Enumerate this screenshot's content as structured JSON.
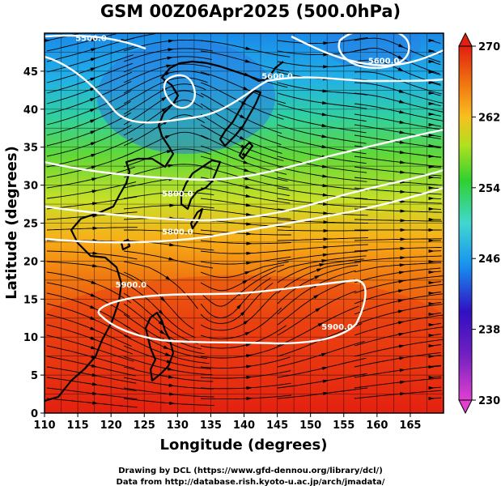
{
  "title": "GSM 00Z06Apr2025 (500.0hPa)",
  "x_axis": {
    "label": "Longitude (degrees)",
    "range": [
      110,
      170
    ],
    "ticks": [
      110,
      115,
      120,
      125,
      130,
      135,
      140,
      145,
      150,
      155,
      160,
      165
    ]
  },
  "y_axis": {
    "label": "Latitude  (degrees)",
    "range": [
      0,
      50
    ],
    "ticks": [
      0,
      5,
      10,
      15,
      20,
      25,
      30,
      35,
      40,
      45
    ]
  },
  "colorbar": {
    "min": 230,
    "max": 270,
    "ticks": [
      230,
      238,
      246,
      254,
      262,
      270
    ],
    "colors": [
      "#e040d0",
      "#3010c0",
      "#1890f0",
      "#40d8d0",
      "#30d030",
      "#b0e020",
      "#f8c020",
      "#f07010",
      "#e02010"
    ]
  },
  "contour_labels": [
    {
      "text": "5500.0",
      "lon": 117,
      "lat": 49
    },
    {
      "text": "5600.0",
      "lon": 145,
      "lat": 44
    },
    {
      "text": "5600.0",
      "lon": 161,
      "lat": 46
    },
    {
      "text": "5800.0",
      "lon": 130,
      "lat": 28.5
    },
    {
      "text": "5800.0",
      "lon": 130,
      "lat": 23.5
    },
    {
      "text": "5900.0",
      "lon": 123,
      "lat": 16.5
    },
    {
      "text": "5900.0",
      "lon": 154,
      "lat": 11
    }
  ],
  "credits": [
    "Drawing by DCL (https://www.gfd-dennou.org/library/dcl/)",
    "Data from http://database.rish.kyoto-u.ac.jp/arch/jmadata/"
  ]
}
